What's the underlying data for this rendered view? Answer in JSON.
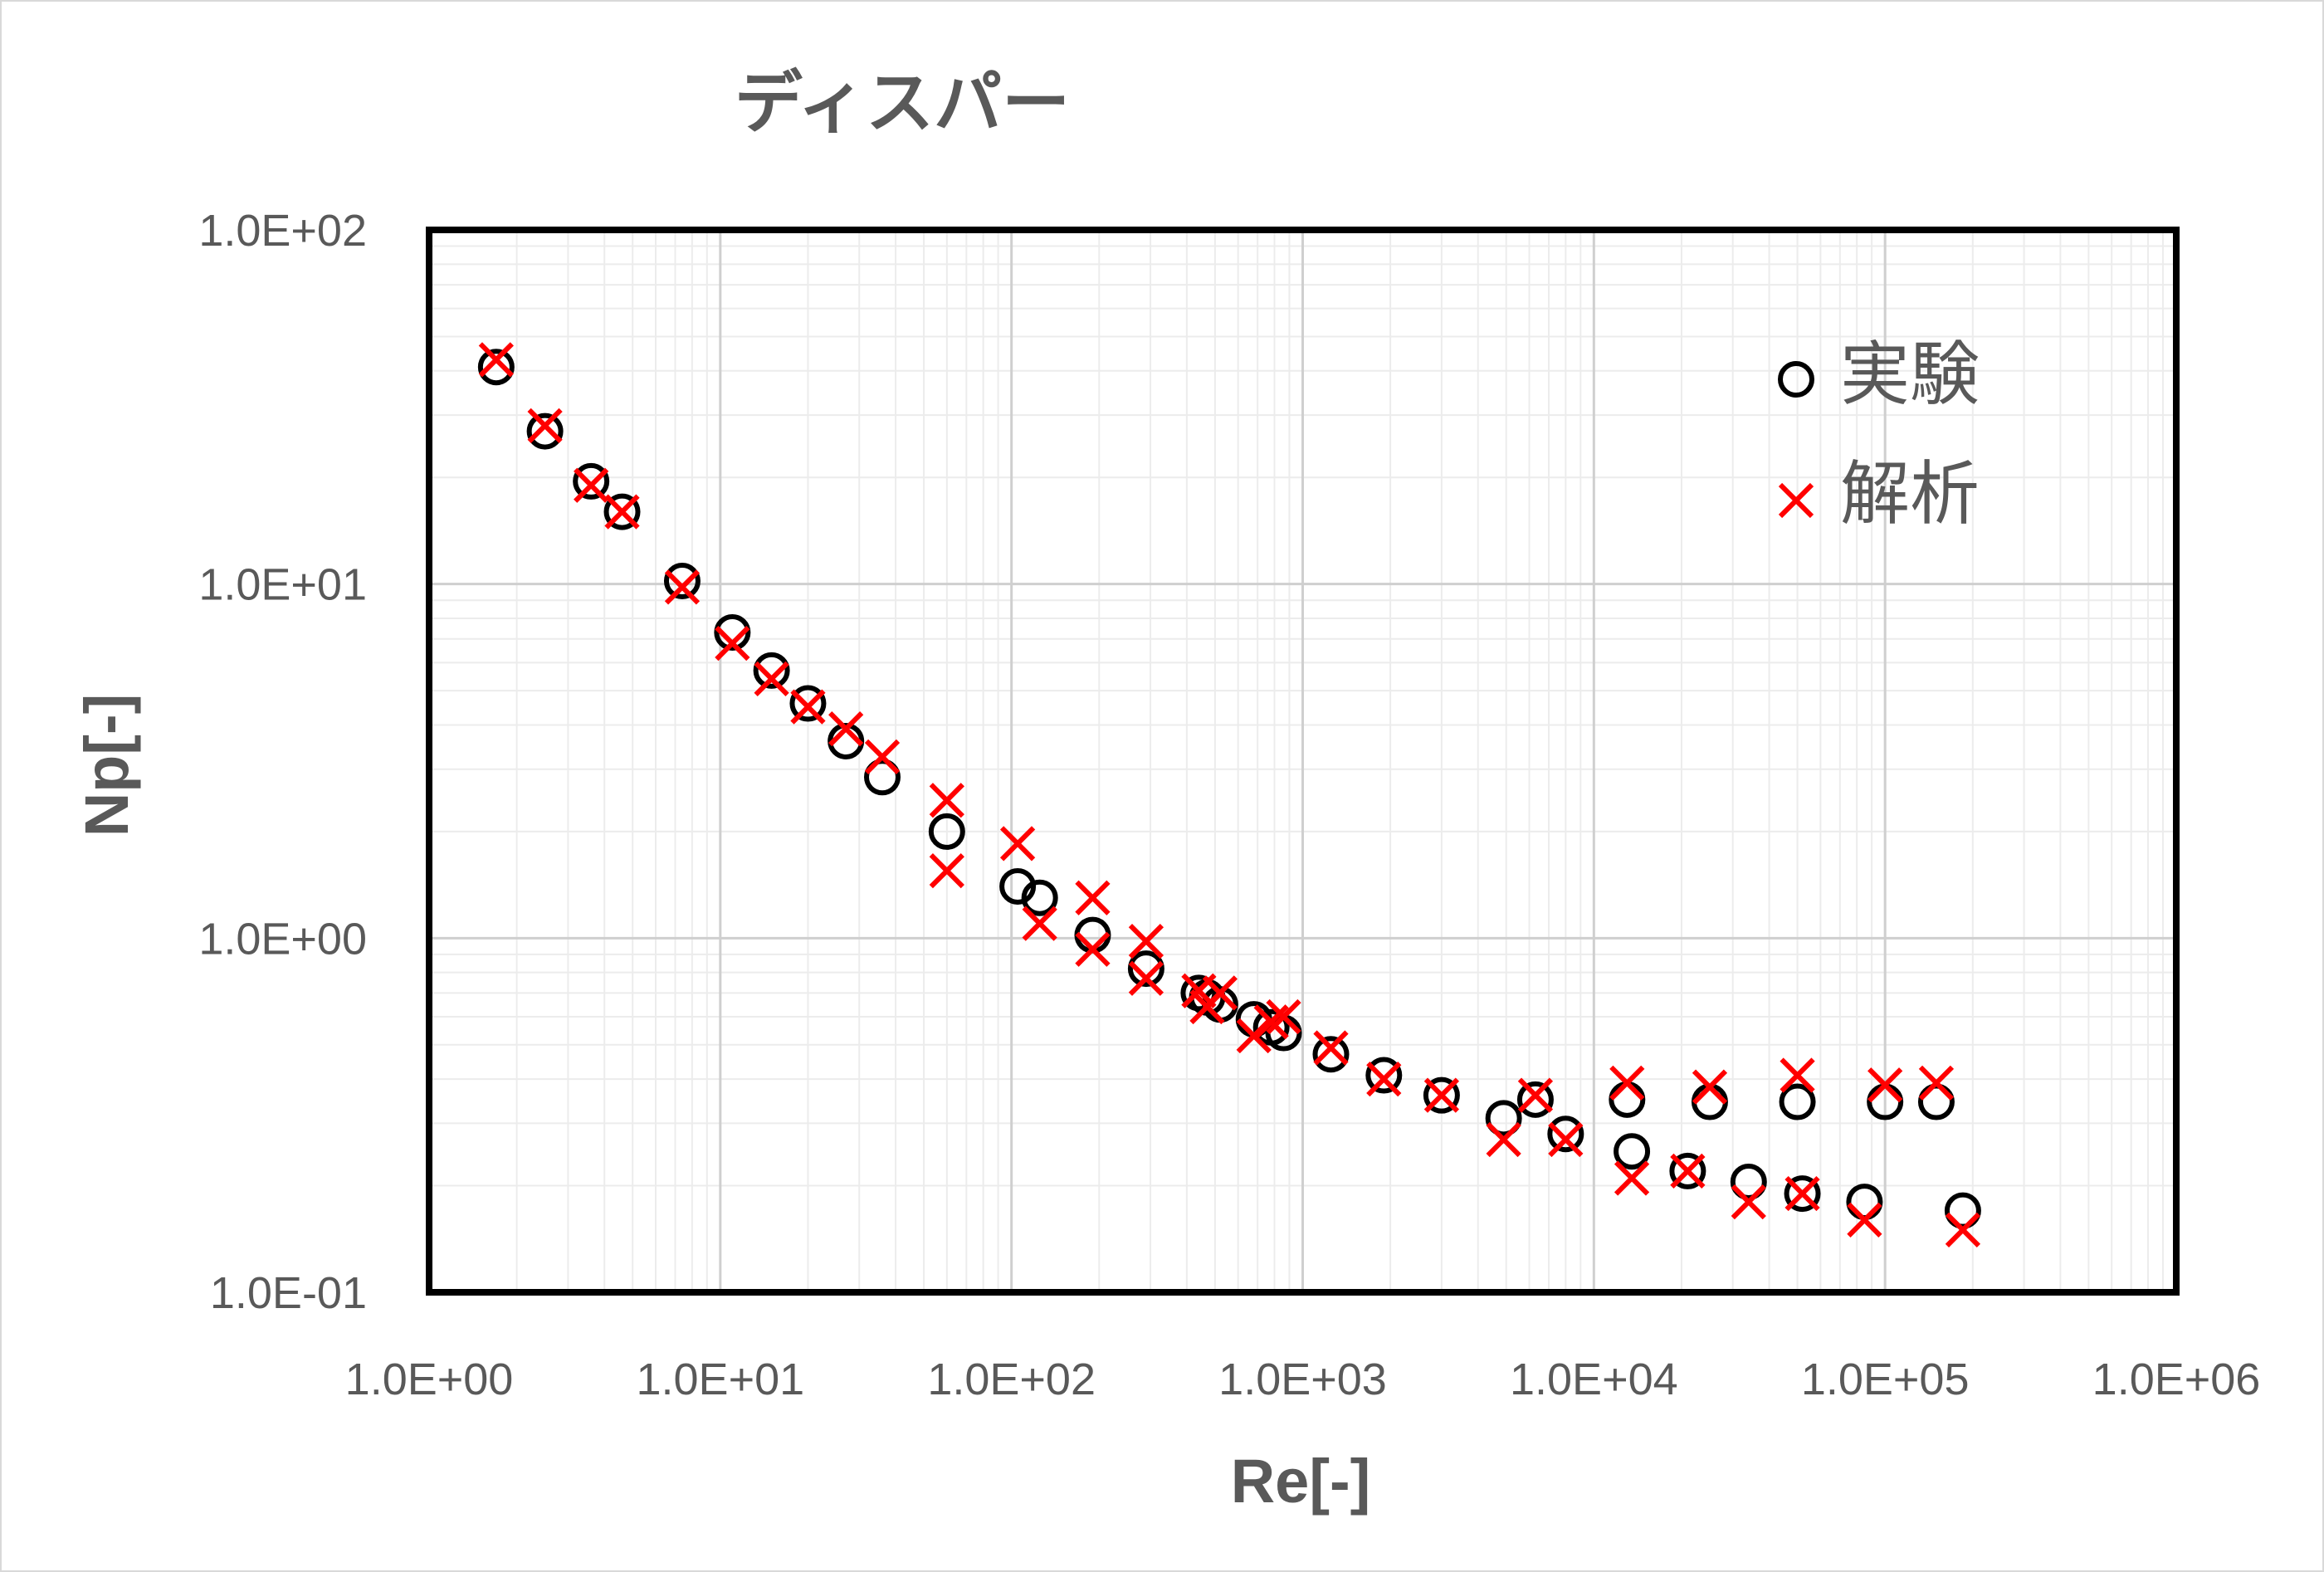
{
  "chart_data": {
    "type": "scatter",
    "title": "ディスパー",
    "xlabel": "Re[-]",
    "ylabel": "Np[-]",
    "xscale": "log",
    "yscale": "log",
    "xlim": [
      1,
      1000000
    ],
    "ylim": [
      0.1,
      100
    ],
    "grid": "on",
    "legend_position": "top-right",
    "x_tick_labels": [
      "1.0E+00",
      "1.0E+01",
      "1.0E+02",
      "1.0E+03",
      "1.0E+04",
      "1.0E+05",
      "1.0E+06"
    ],
    "y_tick_labels": [
      "1.0E-01",
      "1.0E+00",
      "1.0E+01",
      "1.0E+02"
    ],
    "series": [
      {
        "name": "実験",
        "marker": "circle",
        "color": "#000000",
        "points": [
          [
            1.7,
            41
          ],
          [
            2.5,
            27
          ],
          [
            3.6,
            19.5
          ],
          [
            4.6,
            16
          ],
          [
            7.4,
            10.2
          ],
          [
            11,
            7.3
          ],
          [
            15,
            5.7
          ],
          [
            20,
            4.6
          ],
          [
            27,
            3.6
          ],
          [
            36,
            2.85
          ],
          [
            60,
            2.0
          ],
          [
            105,
            1.4
          ],
          [
            125,
            1.3
          ],
          [
            190,
            1.02
          ],
          [
            290,
            0.82
          ],
          [
            440,
            0.7
          ],
          [
            470,
            0.68
          ],
          [
            520,
            0.65
          ],
          [
            680,
            0.59
          ],
          [
            780,
            0.56
          ],
          [
            860,
            0.54
          ],
          [
            1250,
            0.47
          ],
          [
            1900,
            0.41
          ],
          [
            3000,
            0.36
          ],
          [
            4900,
            0.31
          ],
          [
            6300,
            0.35
          ],
          [
            8000,
            0.28
          ],
          [
            13000,
            0.35
          ],
          [
            13500,
            0.25
          ],
          [
            21000,
            0.22
          ],
          [
            25000,
            0.345
          ],
          [
            34000,
            0.205
          ],
          [
            50000,
            0.345
          ],
          [
            52000,
            0.19
          ],
          [
            85000,
            0.18
          ],
          [
            100000,
            0.345
          ],
          [
            150000,
            0.345
          ],
          [
            185000,
            0.17
          ]
        ]
      },
      {
        "name": "解析",
        "marker": "x",
        "color": "#ff0000",
        "points": [
          [
            1.7,
            43
          ],
          [
            2.5,
            28
          ],
          [
            3.6,
            19
          ],
          [
            4.6,
            16
          ],
          [
            7.4,
            9.8
          ],
          [
            11,
            6.8
          ],
          [
            15,
            5.4
          ],
          [
            20,
            4.5
          ],
          [
            27,
            3.9
          ],
          [
            36,
            3.25
          ],
          [
            60,
            2.45
          ],
          [
            60,
            1.55
          ],
          [
            105,
            1.85
          ],
          [
            125,
            1.1
          ],
          [
            190,
            1.3
          ],
          [
            190,
            0.93
          ],
          [
            290,
            0.98
          ],
          [
            290,
            0.77
          ],
          [
            440,
            0.71
          ],
          [
            470,
            0.64
          ],
          [
            520,
            0.7
          ],
          [
            680,
            0.53
          ],
          [
            780,
            0.58
          ],
          [
            860,
            0.6
          ],
          [
            1250,
            0.49
          ],
          [
            1900,
            0.4
          ],
          [
            3000,
            0.36
          ],
          [
            4900,
            0.27
          ],
          [
            6300,
            0.36
          ],
          [
            8000,
            0.27
          ],
          [
            13000,
            0.39
          ],
          [
            13500,
            0.21
          ],
          [
            21000,
            0.22
          ],
          [
            25000,
            0.38
          ],
          [
            34000,
            0.18
          ],
          [
            50000,
            0.41
          ],
          [
            52000,
            0.19
          ],
          [
            85000,
            0.16
          ],
          [
            100000,
            0.385
          ],
          [
            150000,
            0.39
          ],
          [
            185000,
            0.15
          ]
        ]
      }
    ]
  }
}
